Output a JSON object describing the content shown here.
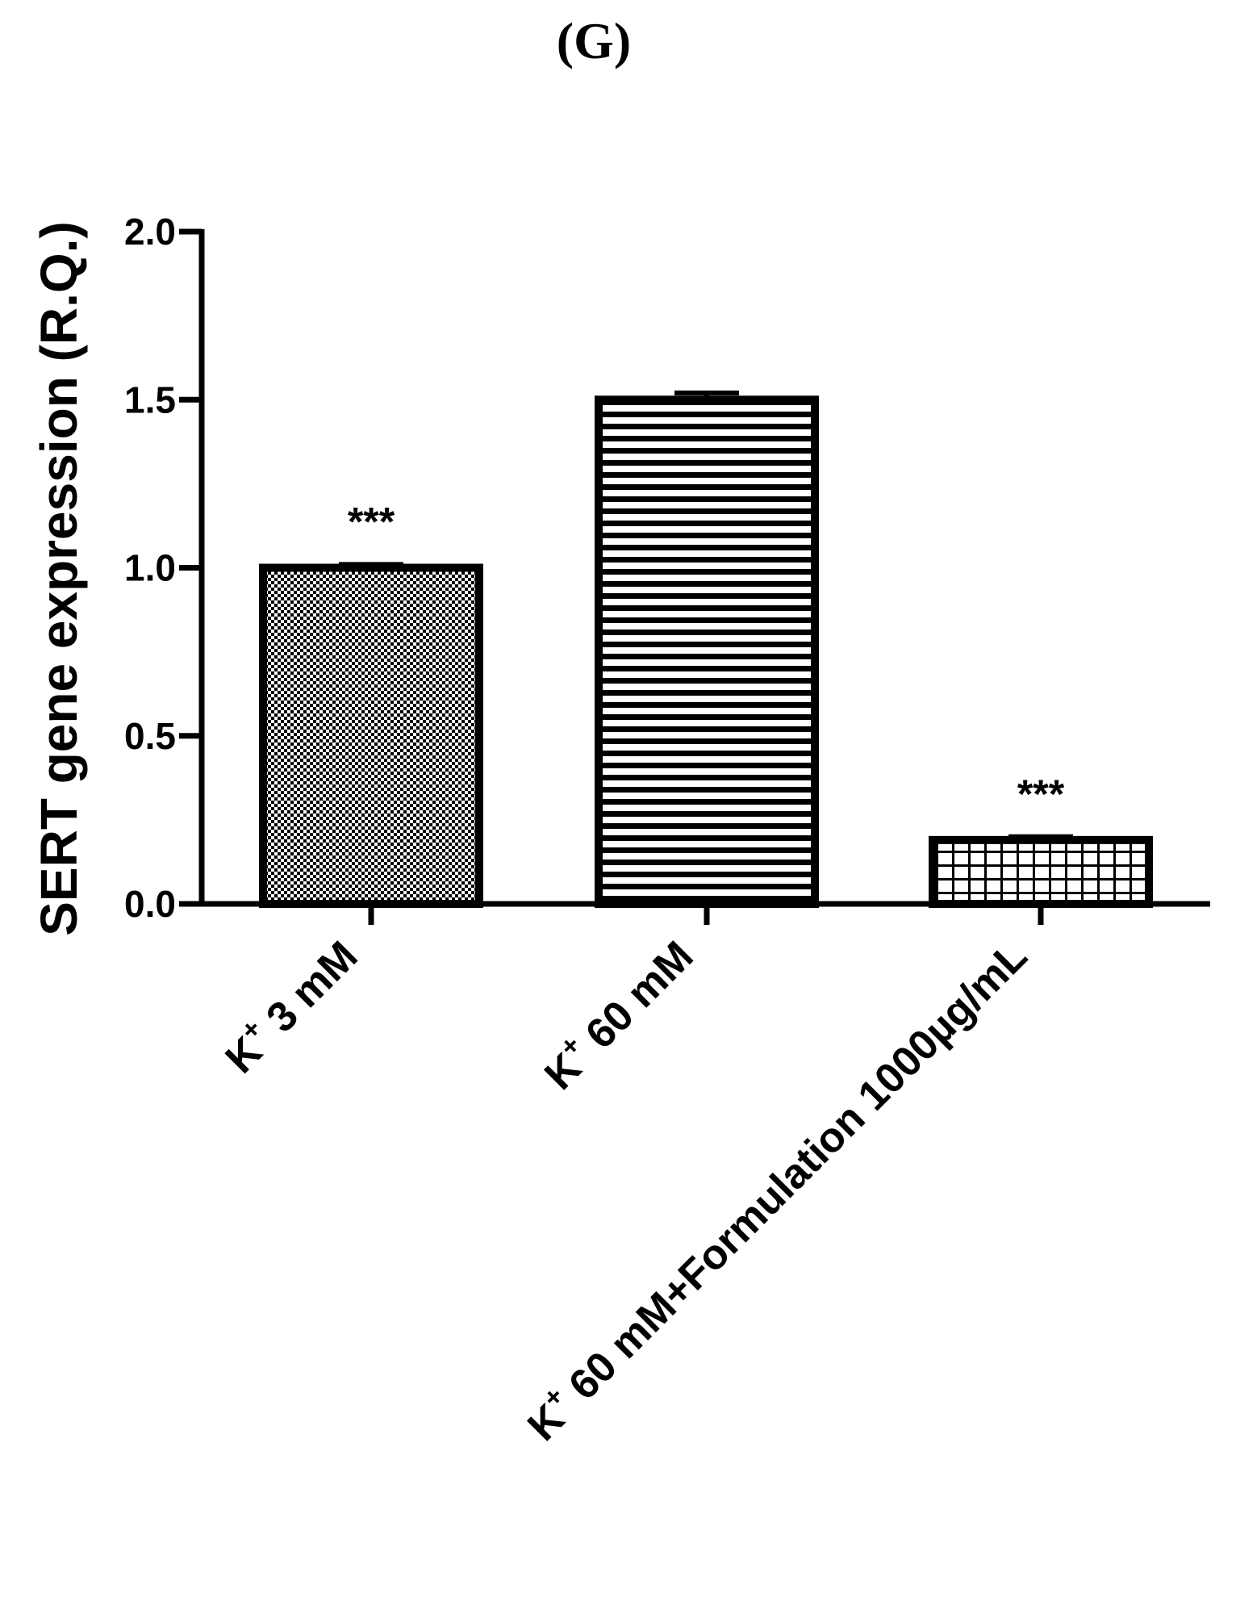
{
  "chart_data": {
    "type": "bar",
    "panel_label": "(G)",
    "title": "",
    "xlabel": "",
    "ylabel": "SERT gene expression (R.Q.)",
    "ylim": [
      0,
      2.0
    ],
    "yticks": [
      "0.0",
      "0.5",
      "1.0",
      "1.5",
      "2.0"
    ],
    "ytick_values": [
      0,
      0.5,
      1.0,
      1.5,
      2.0
    ],
    "grid": false,
    "legend": "none",
    "categories": [
      {
        "prefix": "K",
        "sup": "+",
        "rest": " 3 mM"
      },
      {
        "prefix": "K",
        "sup": "+",
        "rest": " 60 mM"
      },
      {
        "prefix": "K",
        "sup": "+",
        "rest": " 60 mM+Formulation 1000µg/mL"
      }
    ],
    "values": [
      1.0,
      1.5,
      0.19
    ],
    "errors": [
      0.01,
      0.02,
      0.01
    ],
    "significance": [
      "***",
      "",
      "***"
    ],
    "patterns": [
      "checker",
      "horizontal-lines",
      "grid"
    ],
    "colors": {
      "stroke": "#000000",
      "fill": "#ffffff",
      "text": "#000000"
    }
  }
}
